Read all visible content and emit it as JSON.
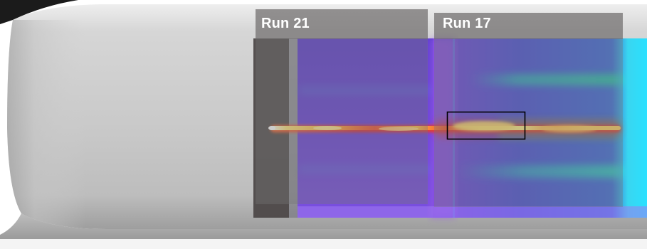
{
  "labels": {
    "run_a": "Run 21",
    "run_b": "Run 17"
  },
  "colors": {
    "model_gray": "#c8c8c8",
    "dark_strip": "#4a4444",
    "ir_field": "#6a3fd6",
    "streak_core": "#ffe070",
    "streak_outer": "#e23a2a",
    "highlight_box": "#000000"
  }
}
